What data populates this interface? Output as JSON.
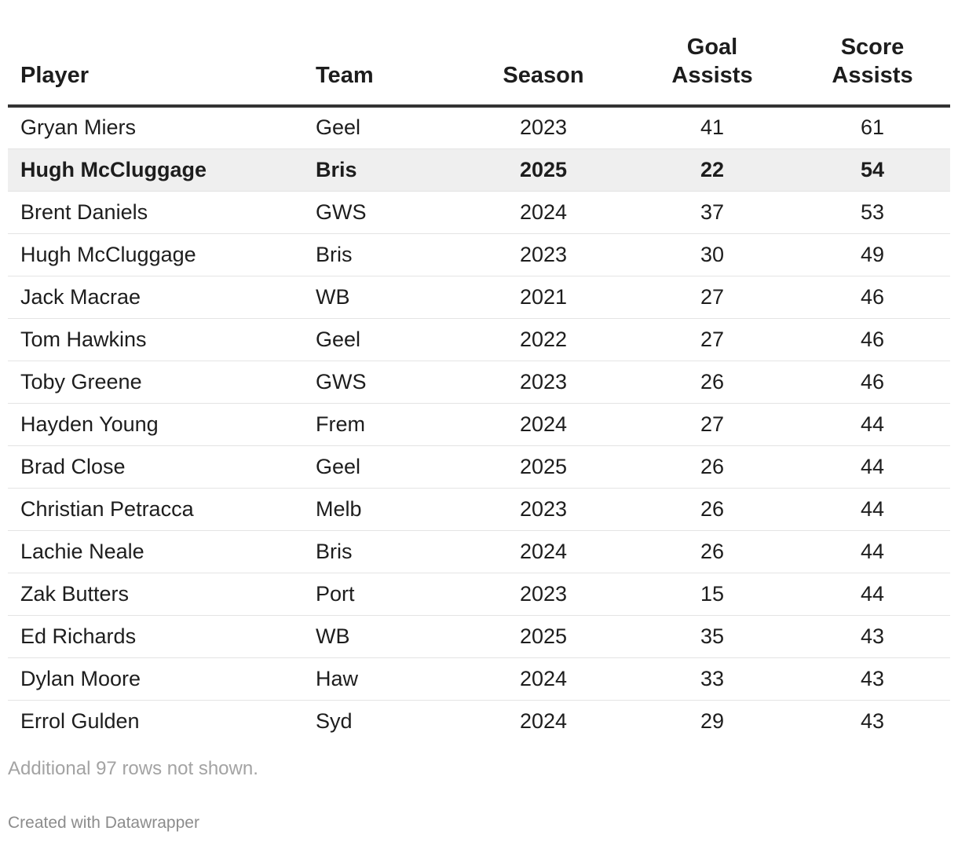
{
  "chart_data": {
    "type": "table",
    "columns": [
      "Player",
      "Team",
      "Season",
      "Goal Assists",
      "Score Assists"
    ],
    "header_lines": [
      [
        "Player"
      ],
      [
        "Team"
      ],
      [
        "Season"
      ],
      [
        "Goal",
        "Assists"
      ],
      [
        "Score",
        "Assists"
      ]
    ],
    "rows": [
      [
        "Gryan Miers",
        "Geel",
        "2023",
        "41",
        "61"
      ],
      [
        "Hugh McCluggage",
        "Bris",
        "2025",
        "22",
        "54"
      ],
      [
        "Brent Daniels",
        "GWS",
        "2024",
        "37",
        "53"
      ],
      [
        "Hugh McCluggage",
        "Bris",
        "2023",
        "30",
        "49"
      ],
      [
        "Jack Macrae",
        "WB",
        "2021",
        "27",
        "46"
      ],
      [
        "Tom Hawkins",
        "Geel",
        "2022",
        "27",
        "46"
      ],
      [
        "Toby Greene",
        "GWS",
        "2023",
        "26",
        "46"
      ],
      [
        "Hayden Young",
        "Frem",
        "2024",
        "27",
        "44"
      ],
      [
        "Brad Close",
        "Geel",
        "2025",
        "26",
        "44"
      ],
      [
        "Christian Petracca",
        "Melb",
        "2023",
        "26",
        "44"
      ],
      [
        "Lachie Neale",
        "Bris",
        "2024",
        "26",
        "44"
      ],
      [
        "Zak Butters",
        "Port",
        "2023",
        "15",
        "44"
      ],
      [
        "Ed Richards",
        "WB",
        "2025",
        "35",
        "43"
      ],
      [
        "Dylan Moore",
        "Haw",
        "2024",
        "33",
        "43"
      ],
      [
        "Errol Gulden",
        "Syd",
        "2024",
        "29",
        "43"
      ]
    ],
    "highlighted_row_index": 1,
    "highlight_color": "#efefef"
  },
  "note": "Additional 97 rows not shown.",
  "credit": "Created with Datawrapper"
}
